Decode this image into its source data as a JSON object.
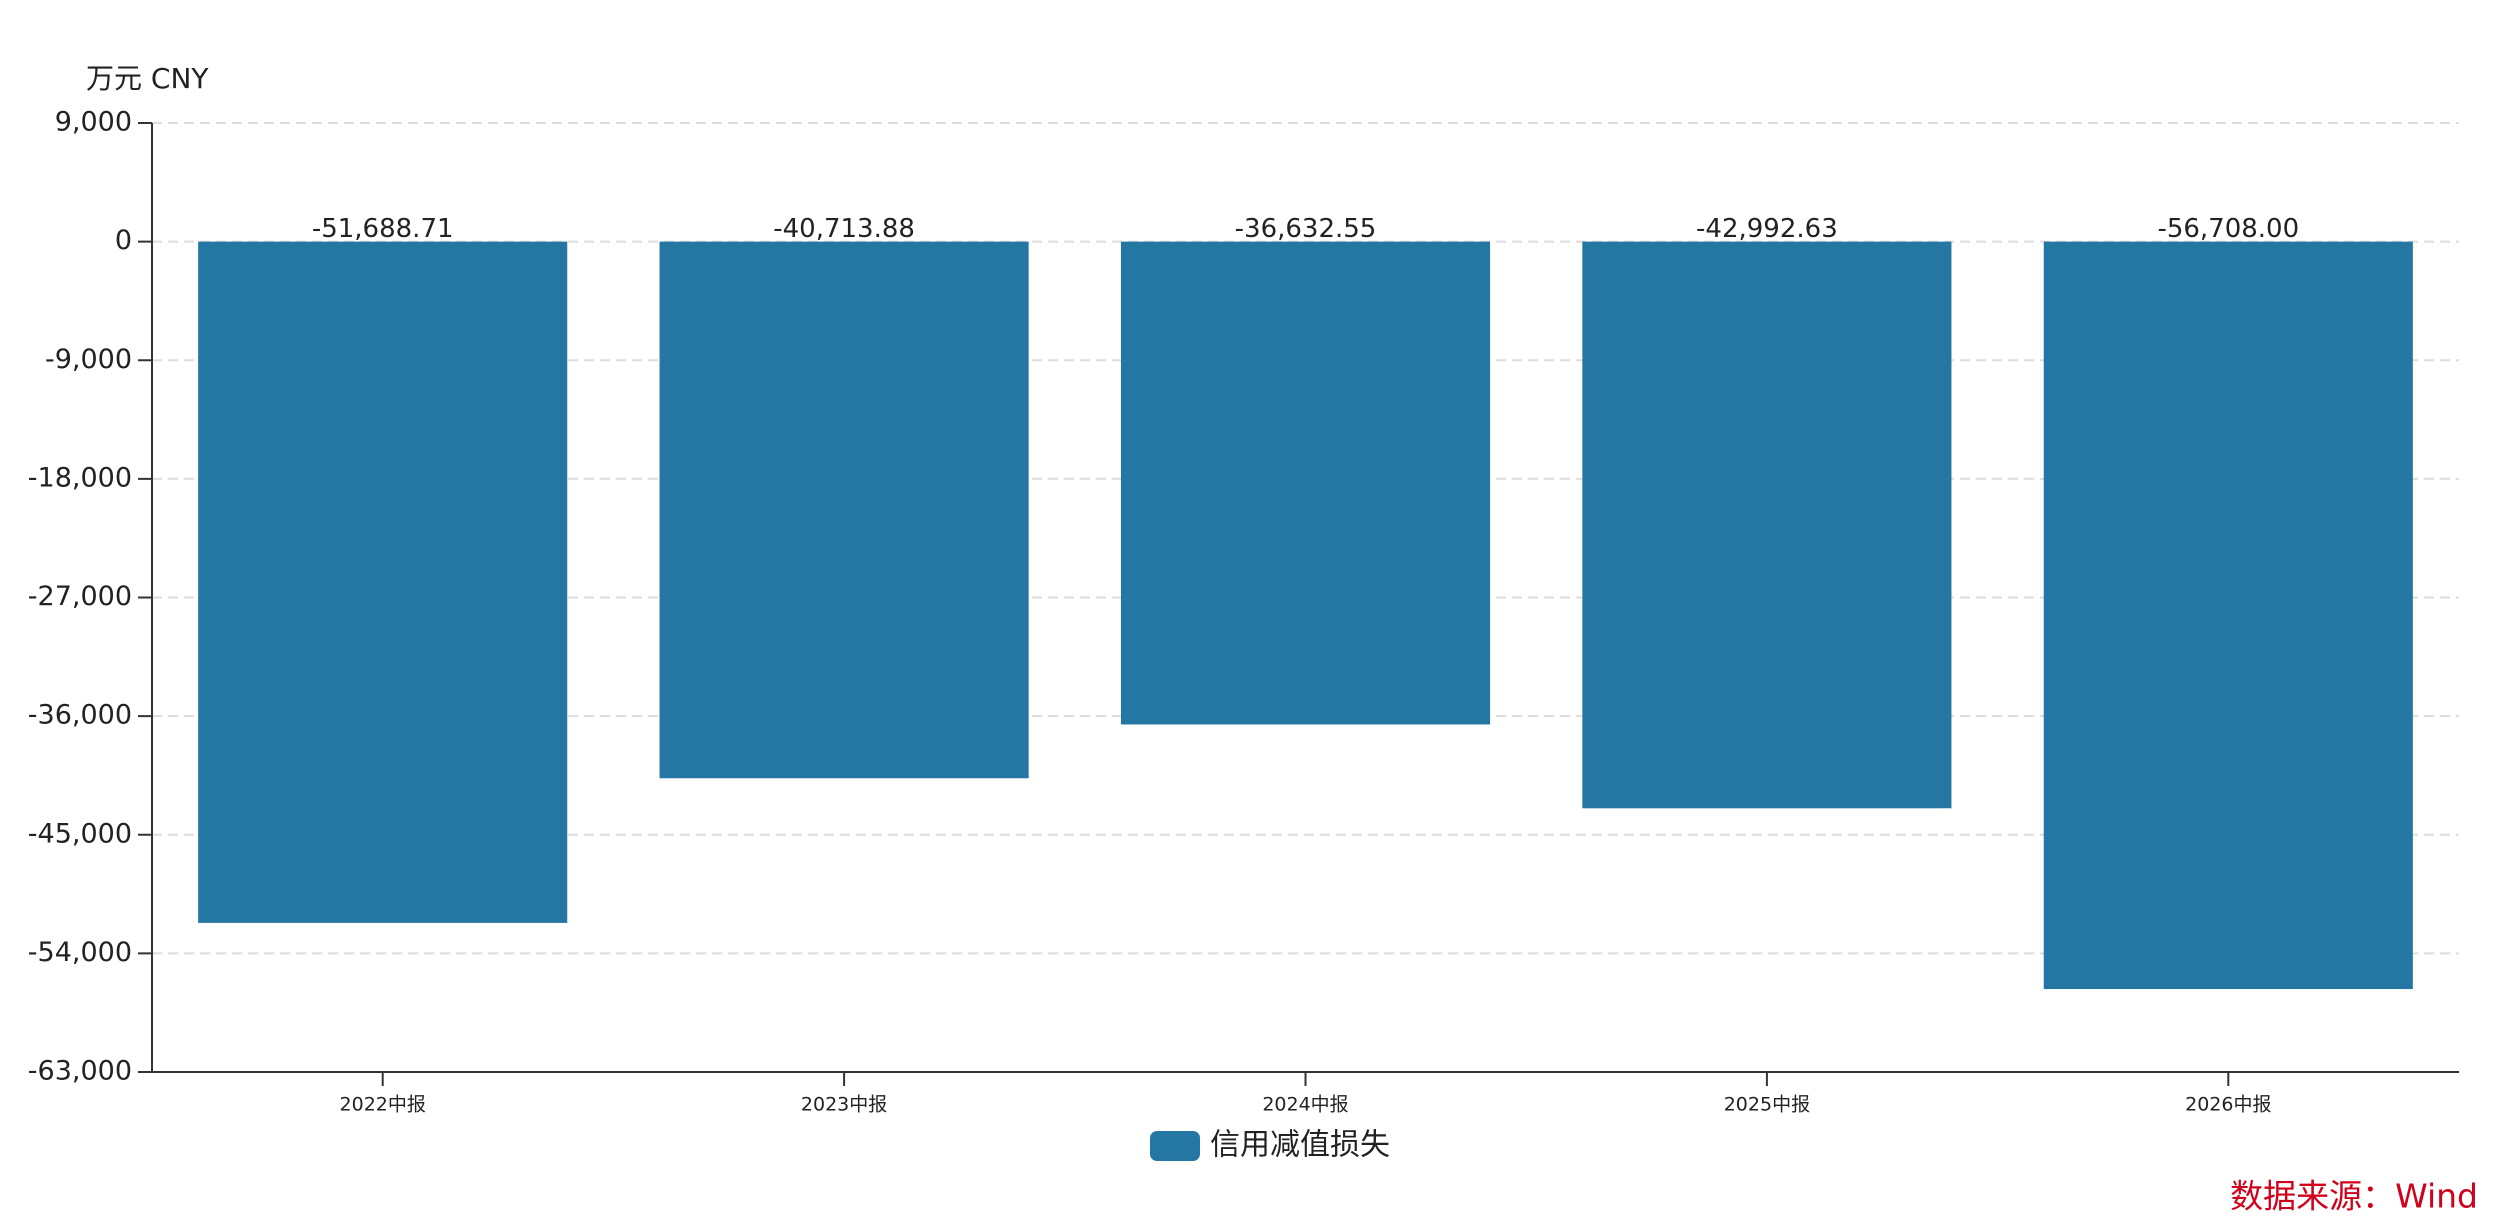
{
  "chart_data": {
    "type": "bar",
    "y_label": "万元  CNY",
    "source": "数据来源：Wind",
    "categories": [
      "2022中报",
      "2023中报",
      "2024中报",
      "2025中报",
      "2026中报"
    ],
    "series": [
      {
        "name": "信用减值损失",
        "color": "#2577a3",
        "values": [
          -51688.71,
          -40713.88,
          -36632.55,
          -42992.63,
          -56708.0
        ],
        "value_labels": [
          "-51,688.71",
          "-40,713.88",
          "-36,632.55",
          "-42,992.63",
          "-56,708.00"
        ]
      }
    ],
    "ylim": [
      -63000,
      9000
    ],
    "yticks": [
      {
        "value": 9000,
        "label": "9,000"
      },
      0,
      {
        "value": -9000,
        "label": "-9,000"
      },
      {
        "value": -18000,
        "label": "-18,000"
      },
      {
        "value": -27000,
        "label": "-27,000"
      },
      {
        "value": -36000,
        "label": "-36,000"
      },
      {
        "value": -45000,
        "label": "-45,000"
      },
      {
        "value": -54000,
        "label": "-54,000"
      },
      {
        "value": -63000,
        "label": "-63,000"
      }
    ],
    "grid": true
  }
}
